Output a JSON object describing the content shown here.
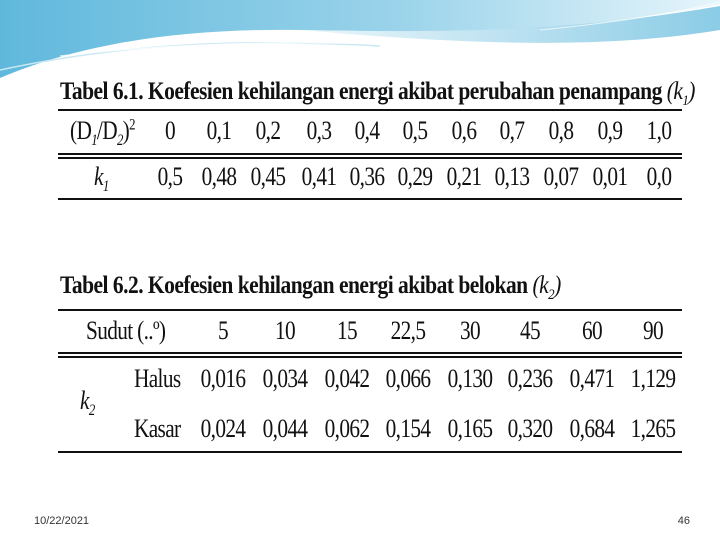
{
  "table1": {
    "title": "Tabel 6.1. Koefesien kehilangan energi akibat perubahan penampang",
    "title_symbol": "(k",
    "title_symbol_sub": "1",
    "title_symbol_close": ")",
    "row1_label": "(D",
    "row1_label_sub1": "1",
    "row1_label_mid": "/D",
    "row1_label_sub2": "2",
    "row1_label_close": ")",
    "row1_label_sup": "2",
    "row1_values": [
      "0",
      "0,1",
      "0,2",
      "0,3",
      "0,4",
      "0,5",
      "0,6",
      "0,7",
      "0,8",
      "0,9",
      "1,0"
    ],
    "row2_label": "k",
    "row2_label_sub": "1",
    "row2_values": [
      "0,5",
      "0,48",
      "0,45",
      "0,41",
      "0,36",
      "0,29",
      "0,21",
      "0,13",
      "0,07",
      "0,01",
      "0,0"
    ]
  },
  "table2": {
    "title": "Tabel 6.2. Koefesien kehilangan energi akibat belokan",
    "title_symbol": "(k",
    "title_symbol_sub": "2",
    "title_symbol_close": ")",
    "header_label": "Sudut (..º)",
    "header_values": [
      "5",
      "10",
      "15",
      "22,5",
      "30",
      "45",
      "60",
      "90"
    ],
    "group_label": "k",
    "group_label_sub": "2",
    "row1_label": "Halus",
    "row1_values": [
      "0,016",
      "0,034",
      "0,042",
      "0,066",
      "0,130",
      "0,236",
      "0,471",
      "1,129"
    ],
    "row2_label": "Kasar",
    "row2_values": [
      "0,024",
      "0,044",
      "0,062",
      "0,154",
      "0,165",
      "0,320",
      "0,684",
      "1,265"
    ]
  },
  "footer": {
    "date": "10/22/2021",
    "page": "46"
  },
  "colors": {
    "band_dark": "#5fb8dc",
    "band_light": "#bfe3f1",
    "text": "#111111"
  }
}
